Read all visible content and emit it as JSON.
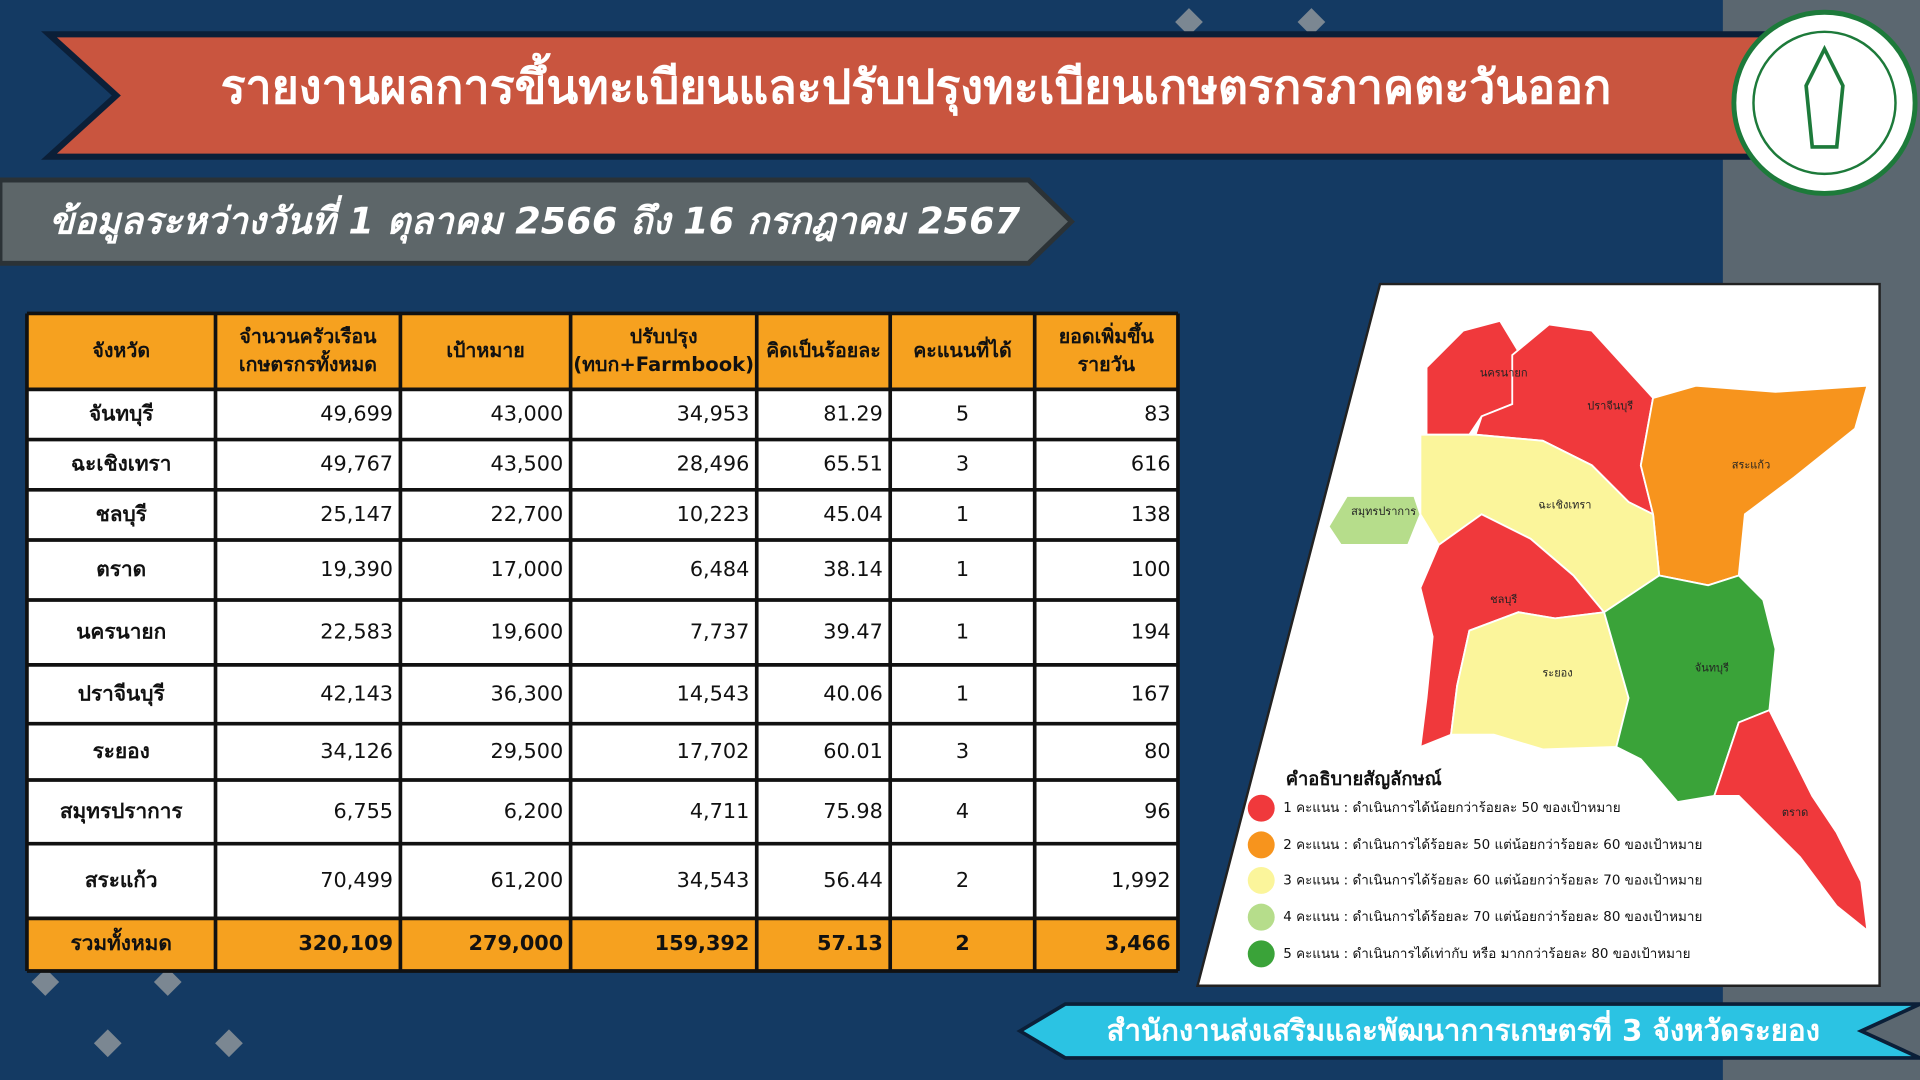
{
  "header": {
    "title": "รายงานผลการขึ้นทะเบียนและปรับปรุงทะเบียนเกษตรกรภาคตะวันออก",
    "subtitle": "ข้อมูลระหว่างวันที่ 1 ตุลาคม 2566 ถึง 16 กรกฎาคม 2567"
  },
  "table": {
    "columns": [
      [
        "จังหวัด"
      ],
      [
        "จำนวนครัวเรือน",
        "เกษตรกรทั้งหมด"
      ],
      [
        "เป้าหมาย"
      ],
      [
        "ปรับปรุง",
        "(ทบก+Farmbook)"
      ],
      [
        "คิดเป็นร้อยละ"
      ],
      [
        "คะแนนที่ได้"
      ],
      [
        "ยอดเพิ่มขึ้น",
        "รายวัน"
      ]
    ],
    "rows": [
      [
        "จันทบุรี",
        "49,699",
        "43,000",
        "34,953",
        "81.29",
        "5",
        "83"
      ],
      [
        "ฉะเชิงเทรา",
        "49,767",
        "43,500",
        "28,496",
        "65.51",
        "3",
        "616"
      ],
      [
        "ชลบุรี",
        "25,147",
        "22,700",
        "10,223",
        "45.04",
        "1",
        "138"
      ],
      [
        "ตราด",
        "19,390",
        "17,000",
        "6,484",
        "38.14",
        "1",
        "100"
      ],
      [
        "นครนายก",
        "22,583",
        "19,600",
        "7,737",
        "39.47",
        "1",
        "194"
      ],
      [
        "ปราจีนบุรี",
        "42,143",
        "36,300",
        "14,543",
        "40.06",
        "1",
        "167"
      ],
      [
        "ระยอง",
        "34,126",
        "29,500",
        "17,702",
        "60.01",
        "3",
        "80"
      ],
      [
        "สมุทรปราการ",
        "6,755",
        "6,200",
        "4,711",
        "75.98",
        "4",
        "96"
      ],
      [
        "สระแก้ว",
        "70,499",
        "61,200",
        "34,543",
        "56.44",
        "2",
        "1,992"
      ]
    ],
    "total": [
      "รวมทั้งหมด",
      "320,109",
      "279,000",
      "159,392",
      "57.13",
      "2",
      "3,466"
    ]
  },
  "map": {
    "labels": [
      "นครนายก",
      "ปราจีนบุรี",
      "สระแก้ว",
      "สมุทรปราการ",
      "ฉะเชิงเทรา",
      "ชลบุรี",
      "ระยอง",
      "จันทบุรี",
      "ตราด"
    ],
    "legend": {
      "title": "คำอธิบายสัญลักษณ์",
      "items": [
        "1 คะแนน : ดำเนินการได้น้อยกว่าร้อยละ 50 ของเป้าหมาย",
        "2 คะแนน : ดำเนินการได้ร้อยละ 50 แต่น้อยกว่าร้อยละ 60 ของเป้าหมาย",
        "3 คะแนน : ดำเนินการได้ร้อยละ 60 แต่น้อยกว่าร้อยละ 70 ของเป้าหมาย",
        "4 คะแนน : ดำเนินการได้ร้อยละ 70 แต่น้อยกว่าร้อยละ 80 ของเป้าหมาย",
        "5 คะแนน : ดำเนินการได้เท่ากับ หรือ มากกว่าร้อยละ 80 ของเป้าหมาย"
      ]
    }
  },
  "footer": "สำนักงานส่งเสริมและพัฒนาการเกษตรที่ 3 จังหวัดระยอง"
}
